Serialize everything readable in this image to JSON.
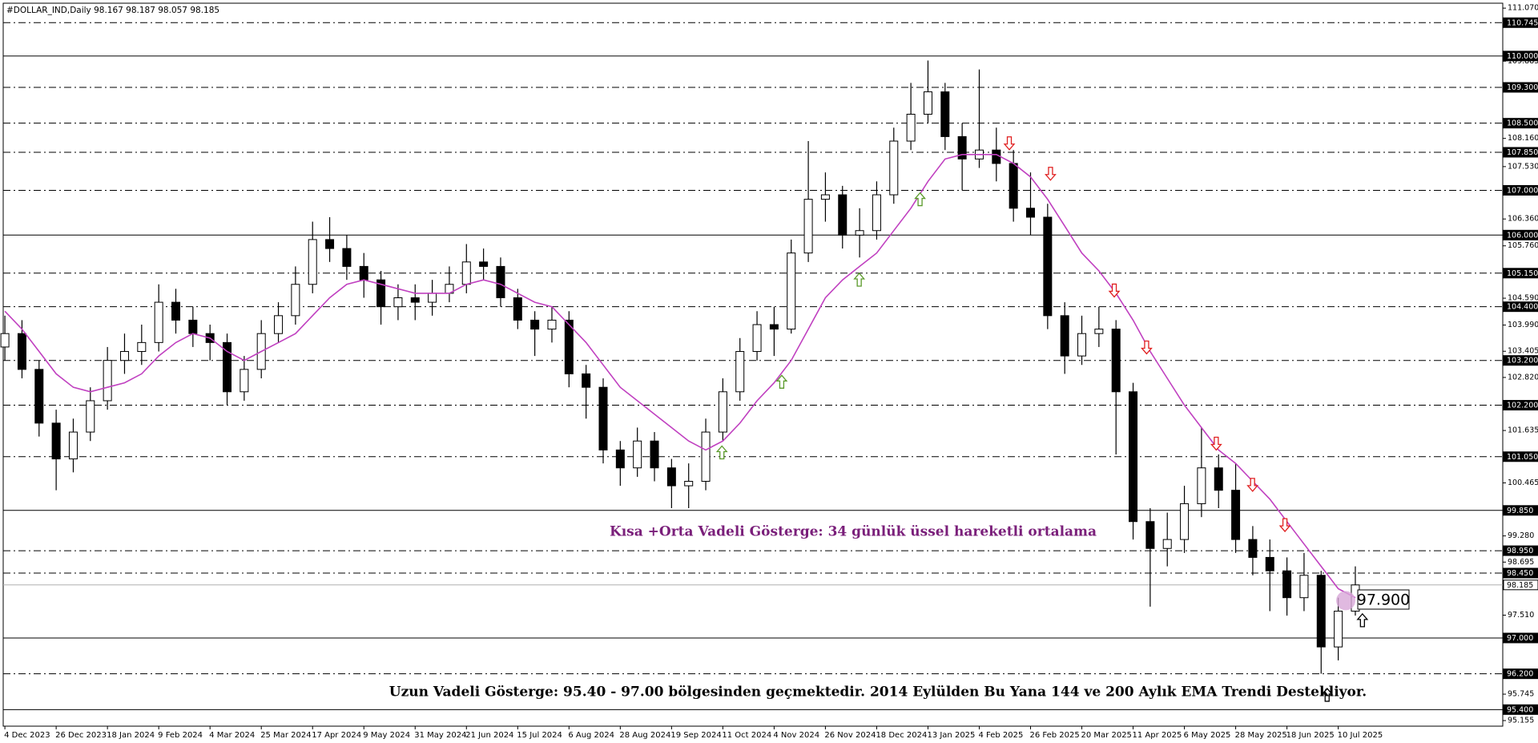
{
  "chart_data": {
    "type": "candlestick",
    "header": "#DOLLAR_IND,Daily  98.167 98.187 98.057 98.185",
    "annotations": [
      {
        "text": "Kısa +Orta Vadeli Gösterge: 34 günlük üssel hareketli ortalama",
        "color": "#7a1f7a"
      },
      {
        "text": "Uzun Vadeli Gösterge: 95.40 - 97.00 bölgesinden geçmektedir.  2014 Eylülden Bu Yana 144 ve 200 Aylık EMA Trendi Destekliyor.",
        "color": "#000000"
      },
      {
        "text": "97.900",
        "color": "#000000"
      }
    ],
    "categories": [
      "4 Dec 2023",
      null,
      null,
      "26 Dec 2023",
      null,
      null,
      "18 Jan 2024",
      null,
      null,
      "9 Feb 2024",
      null,
      null,
      "4 Mar 2024",
      null,
      null,
      "25 Mar 2024",
      null,
      null,
      "17 Apr 2024",
      null,
      null,
      "9 May 2024",
      null,
      null,
      "31 May 2024",
      null,
      null,
      "21 Jun 2024",
      null,
      null,
      "15 Jul 2024",
      null,
      null,
      "6 Aug 2024",
      null,
      null,
      "28 Aug 2024",
      null,
      null,
      "19 Sep 2024",
      null,
      null,
      "11 Oct 2024",
      null,
      null,
      "4 Nov 2024",
      null,
      null,
      "26 Nov 2024",
      null,
      null,
      "18 Dec 2024",
      null,
      null,
      "13 Jan 2025",
      null,
      null,
      "4 Feb 2025",
      null,
      null,
      "26 Feb 2025",
      null,
      null,
      "20 Mar 2025",
      null,
      null,
      "11 Apr 2025",
      null,
      null,
      "6 May 2025",
      null,
      null,
      "28 May 2025",
      null,
      null,
      "18 Jun 2025",
      null,
      null,
      "10 Jul 2025",
      null
    ],
    "open": [
      103.5,
      103.8,
      103.0,
      101.8,
      101.0,
      101.6,
      102.3,
      103.2,
      103.4,
      103.6,
      104.5,
      104.1,
      103.8,
      103.6,
      102.5,
      103.0,
      103.8,
      104.2,
      104.9,
      105.9,
      105.7,
      105.3,
      105.0,
      104.4,
      104.6,
      104.5,
      104.7,
      104.9,
      105.4,
      105.3,
      104.6,
      104.1,
      103.9,
      104.1,
      102.9,
      102.6,
      101.2,
      100.8,
      101.4,
      100.8,
      100.4,
      100.5,
      101.6,
      102.5,
      103.4,
      104.0,
      103.9,
      105.6,
      106.8,
      106.9,
      106.0,
      106.1,
      106.9,
      108.1,
      108.7,
      109.2,
      108.2,
      107.7,
      107.9,
      107.6,
      106.6,
      106.4,
      104.2,
      103.3,
      103.8,
      103.9,
      102.5,
      99.6,
      99.0,
      99.2,
      100.0,
      100.8,
      100.3,
      99.2,
      98.8,
      98.5,
      97.9,
      98.4,
      96.8,
      97.6
    ],
    "high": [
      104.2,
      104.1,
      103.2,
      102.1,
      101.9,
      102.6,
      103.5,
      103.8,
      104.0,
      104.9,
      104.8,
      104.4,
      104.0,
      103.8,
      103.3,
      104.1,
      104.5,
      105.3,
      106.3,
      106.4,
      106.0,
      105.6,
      105.2,
      104.9,
      104.9,
      105.0,
      105.3,
      105.8,
      105.7,
      105.5,
      104.8,
      104.3,
      104.4,
      104.3,
      103.1,
      102.8,
      101.4,
      101.7,
      101.6,
      101.0,
      100.9,
      101.9,
      102.8,
      103.7,
      104.3,
      104.4,
      105.9,
      108.1,
      107.4,
      107.1,
      106.6,
      107.2,
      108.4,
      109.4,
      109.9,
      109.4,
      108.5,
      109.7,
      108.4,
      107.9,
      107.4,
      106.7,
      104.5,
      104.2,
      104.4,
      104.1,
      102.7,
      99.9,
      99.8,
      100.4,
      101.7,
      101.1,
      100.9,
      99.5,
      99.2,
      98.8,
      98.9,
      98.5,
      97.9,
      98.6
    ],
    "low": [
      103.2,
      102.8,
      101.5,
      100.3,
      100.7,
      101.4,
      102.1,
      102.9,
      103.1,
      103.4,
      103.8,
      103.5,
      103.2,
      102.2,
      102.3,
      102.8,
      103.6,
      104.0,
      104.7,
      105.4,
      105.0,
      104.6,
      104.0,
      104.1,
      104.1,
      104.2,
      104.5,
      104.7,
      105.0,
      104.4,
      103.9,
      103.3,
      103.6,
      102.6,
      101.9,
      100.9,
      100.4,
      100.6,
      100.5,
      99.9,
      99.9,
      100.3,
      101.4,
      102.3,
      103.2,
      103.3,
      103.8,
      105.4,
      106.3,
      105.7,
      105.5,
      105.9,
      106.7,
      107.9,
      108.5,
      107.9,
      107.0,
      107.5,
      107.2,
      106.3,
      106.0,
      103.9,
      102.9,
      103.1,
      103.5,
      101.1,
      99.2,
      97.7,
      98.6,
      98.9,
      99.7,
      99.9,
      98.9,
      98.4,
      97.6,
      97.5,
      97.6,
      96.2,
      96.5,
      97.5
    ],
    "close": [
      103.8,
      103.0,
      101.8,
      101.0,
      101.6,
      102.3,
      103.2,
      103.4,
      103.6,
      104.5,
      104.1,
      103.8,
      103.6,
      102.5,
      103.0,
      103.8,
      104.2,
      104.9,
      105.9,
      105.7,
      105.3,
      105.0,
      104.4,
      104.6,
      104.5,
      104.7,
      104.9,
      105.4,
      105.3,
      104.6,
      104.1,
      103.9,
      104.1,
      102.9,
      102.6,
      101.2,
      100.8,
      101.4,
      100.8,
      100.4,
      100.5,
      101.6,
      102.5,
      103.4,
      104.0,
      103.9,
      105.6,
      106.8,
      106.9,
      106.0,
      106.1,
      106.9,
      108.1,
      108.7,
      109.2,
      108.2,
      107.7,
      107.9,
      107.6,
      106.6,
      106.4,
      104.2,
      103.3,
      103.8,
      103.9,
      102.5,
      99.6,
      99.0,
      99.2,
      100.0,
      100.8,
      100.3,
      99.2,
      98.8,
      98.5,
      97.9,
      98.4,
      96.8,
      97.6,
      98.185
    ],
    "ema": {
      "color": "#c040c0",
      "values": [
        104.3,
        103.9,
        103.4,
        102.9,
        102.6,
        102.5,
        102.6,
        102.7,
        102.9,
        103.3,
        103.6,
        103.8,
        103.7,
        103.4,
        103.2,
        103.4,
        103.6,
        103.8,
        104.2,
        104.6,
        104.9,
        105.0,
        104.9,
        104.8,
        104.7,
        104.7,
        104.7,
        104.9,
        105.0,
        104.9,
        104.7,
        104.5,
        104.4,
        104.0,
        103.6,
        103.1,
        102.6,
        102.3,
        102.0,
        101.7,
        101.4,
        101.2,
        101.4,
        101.8,
        102.3,
        102.7,
        103.2,
        103.9,
        104.6,
        105.0,
        105.3,
        105.6,
        106.1,
        106.6,
        107.2,
        107.7,
        107.8,
        107.8,
        107.8,
        107.6,
        107.3,
        106.8,
        106.2,
        105.6,
        105.2,
        104.7,
        104.1,
        103.4,
        102.8,
        102.2,
        101.7,
        101.2,
        100.9,
        100.5,
        100.1,
        99.6,
        99.1,
        98.6,
        98.1,
        97.9
      ]
    },
    "ylim": [
      95.03,
      111.18
    ],
    "yticks": [
      {
        "value": 111.07,
        "label": "111.070"
      },
      {
        "value": 109.885,
        "label": "109.885"
      },
      {
        "value": 108.16,
        "label": "108.160"
      },
      {
        "value": 107.53,
        "label": "107.530"
      },
      {
        "value": 106.36,
        "label": "106.360"
      },
      {
        "value": 105.76,
        "label": "105.760"
      },
      {
        "value": 104.59,
        "label": "104.590"
      },
      {
        "value": 103.99,
        "label": "103.990"
      },
      {
        "value": 103.405,
        "label": "103.405"
      },
      {
        "value": 102.82,
        "label": "102.820"
      },
      {
        "value": 101.635,
        "label": "101.635"
      },
      {
        "value": 100.465,
        "label": "100.465"
      },
      {
        "value": 99.28,
        "label": "99.280"
      },
      {
        "value": 98.695,
        "label": "98.695"
      },
      {
        "value": 97.51,
        "label": "97.510"
      },
      {
        "value": 95.745,
        "label": "95.745"
      },
      {
        "value": 95.155,
        "label": "95.155"
      }
    ],
    "levels": [
      {
        "value": 110.745,
        "label": "110.745",
        "style": "dashed"
      },
      {
        "value": 110,
        "label": "110.000",
        "style": "solid"
      },
      {
        "value": 109.3,
        "label": "109.300",
        "style": "dashed"
      },
      {
        "value": 108.5,
        "label": "108.500",
        "style": "dashed"
      },
      {
        "value": 107.85,
        "label": "107.850",
        "style": "dashed"
      },
      {
        "value": 107,
        "label": "107.000",
        "style": "dashed"
      },
      {
        "value": 106,
        "label": "106.000",
        "style": "solid"
      },
      {
        "value": 105.15,
        "label": "105.150",
        "style": "dashed"
      },
      {
        "value": 104.4,
        "label": "104.400",
        "style": "dashed"
      },
      {
        "value": 103.2,
        "label": "103.200",
        "style": "dashed"
      },
      {
        "value": 102.2,
        "label": "102.200",
        "style": "dashed"
      },
      {
        "value": 101.05,
        "label": "101.050",
        "style": "dashed"
      },
      {
        "value": 99.85,
        "label": "99.850",
        "style": "solid"
      },
      {
        "value": 98.95,
        "label": "98.950",
        "style": "dashed"
      },
      {
        "value": 98.45,
        "label": "98.450",
        "style": "dashed"
      },
      {
        "value": 98.185,
        "label": "98.185",
        "style": "price"
      },
      {
        "value": 97,
        "label": "97.000",
        "style": "solid"
      },
      {
        "value": 96.2,
        "label": "96.200",
        "style": "dashed"
      },
      {
        "value": 95.4,
        "label": "95.400",
        "style": "solid"
      }
    ]
  }
}
